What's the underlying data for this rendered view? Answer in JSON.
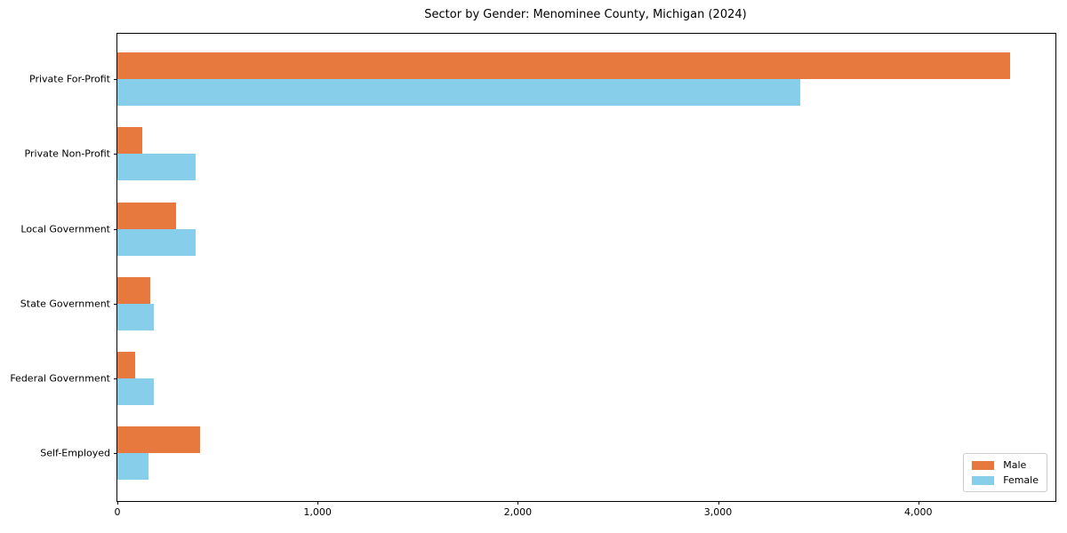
{
  "chart_data": {
    "type": "bar",
    "orientation": "horizontal",
    "title": "Sector by Gender: Menominee County, Michigan (2024)",
    "categories": [
      "Private For-Profit",
      "Private Non-Profit",
      "Local Government",
      "State Government",
      "Federal Government",
      "Self-Employed"
    ],
    "series": [
      {
        "name": "Male",
        "color": "#e8793e",
        "values": [
          4460,
          125,
          295,
          165,
          90,
          415
        ]
      },
      {
        "name": "Female",
        "color": "#87ceeb",
        "values": [
          3410,
          390,
          390,
          180,
          180,
          155
        ]
      }
    ],
    "xlabel": "",
    "ylabel": "",
    "xlim": [
      0,
      4685
    ],
    "x_ticks": [
      0,
      1000,
      2000,
      3000,
      4000
    ],
    "x_tick_labels": [
      "0",
      "1,000",
      "2,000",
      "3,000",
      "4,000"
    ],
    "legend": {
      "position": "lower right"
    },
    "grid": false,
    "axis_color": "#000000",
    "text_color": "#000000",
    "background_color": "#ffffff"
  }
}
